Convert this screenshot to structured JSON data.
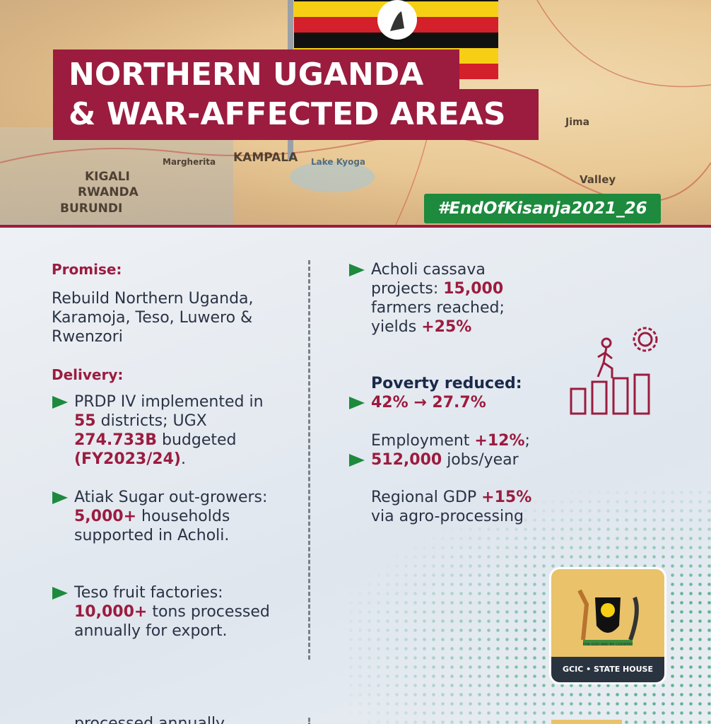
{
  "header": {
    "title_line1": "NORTHERN UGANDA",
    "title_line2": "& WAR-AFFECTED AREAS",
    "hashtag": "#EndOfKisanja2021_26",
    "map_labels": [
      "KAMPALA",
      "KIGALI",
      "RWANDA",
      "BURUNDI",
      "Jima",
      "Valley",
      "Lake Kyoga",
      "Margherita"
    ]
  },
  "promise": {
    "heading": "Promise:",
    "text": "Rebuild Northern Uganda, Karamoja, Teso, Luwero & Rwenzori"
  },
  "delivery": {
    "heading": "Delivery:",
    "items": [
      {
        "bullet": true,
        "segments": [
          {
            "text": "PRDP IV implemented in ",
            "style": "plain"
          },
          {
            "text": "55",
            "style": "accent"
          },
          {
            "text": " districts; UGX ",
            "style": "plain"
          },
          {
            "text": "274.733B",
            "style": "accent"
          },
          {
            "text": " budgeted ",
            "style": "plain"
          },
          {
            "text": "(FY2023/24)",
            "style": "accent"
          },
          {
            "text": ".",
            "style": "plain"
          }
        ]
      },
      {
        "bullet": true,
        "segments": [
          {
            "text": "Atiak Sugar out-growers: ",
            "style": "plain"
          },
          {
            "text": "5,000+",
            "style": "accent"
          },
          {
            "text": " households supported in Acholi.",
            "style": "plain"
          }
        ]
      },
      {
        "bullet": true,
        "segments": [
          {
            "text": "Teso fruit factories: ",
            "style": "plain"
          },
          {
            "text": "10,000+",
            "style": "accent"
          },
          {
            "text": " tons processed annually for export.",
            "style": "plain"
          }
        ]
      }
    ]
  },
  "results": {
    "items": [
      {
        "bullet": true,
        "segments": [
          {
            "text": "Acholi cassava projects: ",
            "style": "plain"
          },
          {
            "text": "15,000",
            "style": "accent"
          },
          {
            "text": " farmers reached; yields ",
            "style": "plain"
          },
          {
            "text": "+25%",
            "style": "accent"
          }
        ]
      },
      {
        "bullet": true,
        "segments": [
          {
            "text": "Poverty reduced:",
            "style": "strong"
          },
          {
            "text": " 42% → 27.7%",
            "style": "accent"
          }
        ]
      },
      {
        "bullet": true,
        "segments": [
          {
            "text": "Employment ",
            "style": "plain"
          },
          {
            "text": "+12%",
            "style": "accent"
          },
          {
            "text": "; ",
            "style": "plain"
          },
          {
            "text": "512,000",
            "style": "accent"
          },
          {
            "text": " jobs/year",
            "style": "plain"
          }
        ]
      },
      {
        "bullet": false,
        "segments": [
          {
            "text": "Regional GDP ",
            "style": "plain"
          },
          {
            "text": "+15%",
            "style": "accent"
          },
          {
            "text": " via agro-processing",
            "style": "plain"
          }
        ]
      }
    ]
  },
  "logo": {
    "motto": "FOR GOD AND MY COUNTRY",
    "caption": "GCIC • STATE HOUSE"
  },
  "footer_fragment": "processed annually"
}
